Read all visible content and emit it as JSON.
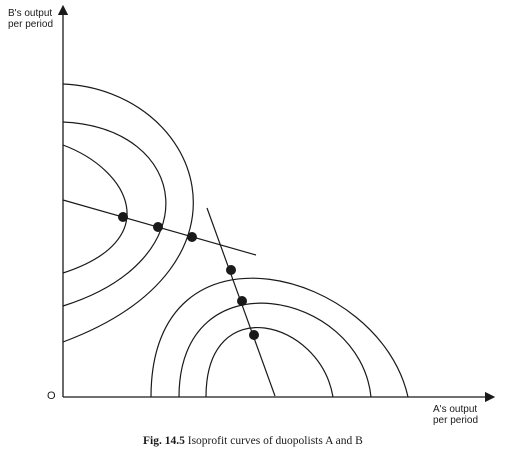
{
  "axes": {
    "y_label_line1": "B's output",
    "y_label_line2": "per period",
    "x_label_line1": "A's output",
    "x_label_line2": "per period",
    "origin": "O"
  },
  "caption": {
    "number": "Fig. 14.5",
    "text": "Isoprofit curves of duopolists A and B"
  },
  "colors": {
    "ink": "#1a1a1a",
    "background": "#ffffff"
  }
}
